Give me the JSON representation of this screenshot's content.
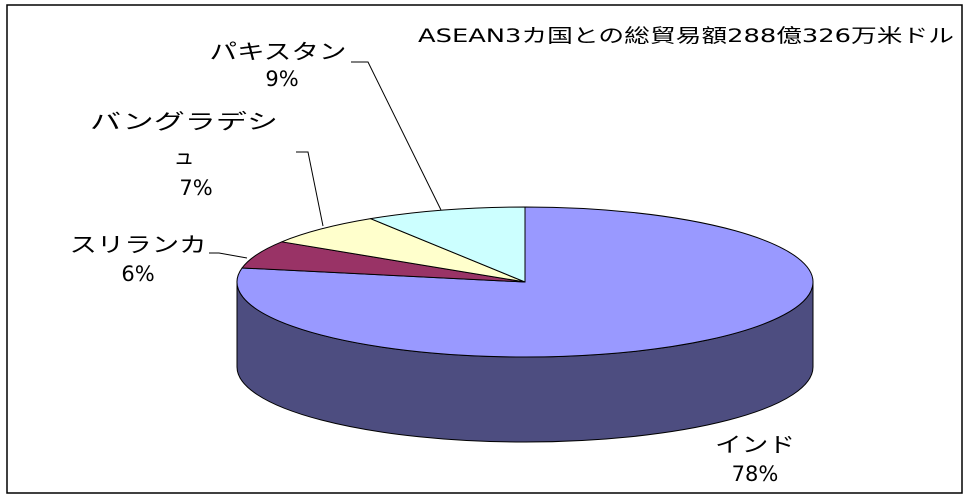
{
  "chart_data": {
    "type": "pie",
    "style": "3d",
    "title": "ASEAN3カ国との総貿易額288億326万米ドル",
    "categories": [
      "インド",
      "スリランカ",
      "バングラデシュ",
      "パキスタン"
    ],
    "values": [
      78,
      6,
      7,
      9
    ],
    "data_labels": [
      "78%",
      "6%",
      "7%",
      "9%"
    ],
    "colors": [
      "#9999ff",
      "#993366",
      "#ffffcc",
      "#ccffff"
    ],
    "side_colors": [
      "#4d4d80",
      "#4d1a33",
      "#808066",
      "#668080"
    ],
    "legend": "none"
  }
}
